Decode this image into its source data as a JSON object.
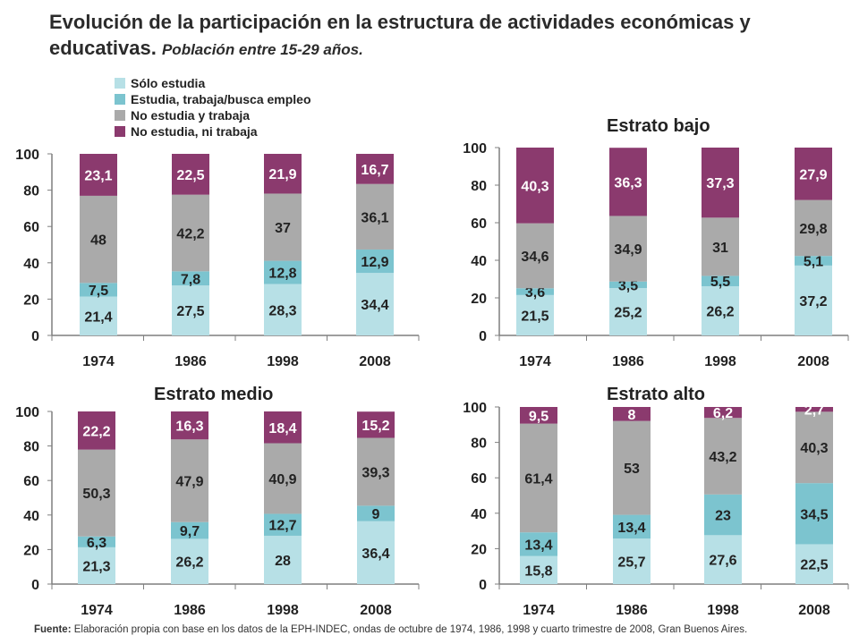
{
  "title": {
    "main": "Evolución de la participación en la estructura de actividades económicas y educativas.",
    "sub": "Población entre 15-29 años."
  },
  "colors": {
    "solo_estudia": "#b7e0e6",
    "estudia_trabaja": "#7cc4cf",
    "no_estudia_trabaja": "#aaaaaa",
    "no_estudia_ni_trabaja": "#8b3a6e"
  },
  "legend": [
    {
      "key": "solo_estudia",
      "label": "Sólo estudia"
    },
    {
      "key": "estudia_trabaja",
      "label": "Estudia, trabaja/busca empleo"
    },
    {
      "key": "no_estudia_trabaja",
      "label": "No estudia y trabaja"
    },
    {
      "key": "no_estudia_ni_trabaja",
      "label": "No estudia, ni trabaja"
    }
  ],
  "chart_data": [
    {
      "type": "bar",
      "stacked": true,
      "title": "",
      "categories": [
        "1974",
        "1986",
        "1998",
        "2008"
      ],
      "ylim": [
        0,
        100
      ],
      "yticks": [
        "0",
        "20",
        "40",
        "60",
        "80",
        "100"
      ],
      "series": [
        {
          "name": "Sólo estudia",
          "key": "solo_estudia",
          "values": [
            21.4,
            27.5,
            28.3,
            34.4
          ],
          "labels": [
            "21,4",
            "27,5",
            "28,3",
            "34,4"
          ]
        },
        {
          "name": "Estudia, trabaja/busca empleo",
          "key": "estudia_trabaja",
          "values": [
            7.5,
            7.8,
            12.8,
            12.9
          ],
          "labels": [
            "7,5",
            "7,8",
            "12,8",
            "12,9"
          ]
        },
        {
          "name": "No estudia y trabaja",
          "key": "no_estudia_trabaja",
          "values": [
            48,
            42.2,
            37,
            36.1
          ],
          "labels": [
            "48",
            "42,2",
            "37",
            "36,1"
          ]
        },
        {
          "name": "No estudia, ni trabaja",
          "key": "no_estudia_ni_trabaja",
          "values": [
            23.1,
            22.5,
            21.9,
            16.7
          ],
          "labels": [
            "23,1",
            "22,5",
            "21,9",
            "16,7"
          ]
        }
      ]
    },
    {
      "type": "bar",
      "stacked": true,
      "title": "Estrato bajo",
      "categories": [
        "1974",
        "1986",
        "1998",
        "2008"
      ],
      "ylim": [
        0,
        100
      ],
      "yticks": [
        "0",
        "20",
        "40",
        "60",
        "80",
        "100"
      ],
      "series": [
        {
          "name": "Sólo estudia",
          "key": "solo_estudia",
          "values": [
            21.5,
            25.2,
            26.2,
            37.2
          ],
          "labels": [
            "21,5",
            "25,2",
            "26,2",
            "37,2"
          ]
        },
        {
          "name": "Estudia, trabaja/busca empleo",
          "key": "estudia_trabaja",
          "values": [
            3.6,
            3.5,
            5.5,
            5.1
          ],
          "labels": [
            "3,6",
            "3,5",
            "5,5",
            "5,1"
          ]
        },
        {
          "name": "No estudia y trabaja",
          "key": "no_estudia_trabaja",
          "values": [
            34.6,
            34.9,
            31,
            29.8
          ],
          "labels": [
            "34,6",
            "34,9",
            "31",
            "29,8"
          ]
        },
        {
          "name": "No estudia, ni trabaja",
          "key": "no_estudia_ni_trabaja",
          "values": [
            40.3,
            36.3,
            37.3,
            27.9
          ],
          "labels": [
            "40,3",
            "36,3",
            "37,3",
            "27,9"
          ]
        }
      ]
    },
    {
      "type": "bar",
      "stacked": true,
      "title": "Estrato medio",
      "categories": [
        "1974",
        "1986",
        "1998",
        "2008"
      ],
      "ylim": [
        0,
        100
      ],
      "yticks": [
        "0",
        "20",
        "40",
        "60",
        "80",
        "100"
      ],
      "series": [
        {
          "name": "Sólo estudia",
          "key": "solo_estudia",
          "values": [
            21.3,
            26.2,
            28,
            36.4
          ],
          "labels": [
            "21,3",
            "26,2",
            "28",
            "36,4"
          ]
        },
        {
          "name": "Estudia, trabaja/busca empleo",
          "key": "estudia_trabaja",
          "values": [
            6.3,
            9.7,
            12.7,
            9
          ],
          "labels": [
            "6,3",
            "9,7",
            "12,7",
            "9"
          ]
        },
        {
          "name": "No estudia y trabaja",
          "key": "no_estudia_trabaja",
          "values": [
            50.3,
            47.9,
            40.9,
            39.3
          ],
          "labels": [
            "50,3",
            "47,9",
            "40,9",
            "39,3"
          ]
        },
        {
          "name": "No estudia, ni trabaja",
          "key": "no_estudia_ni_trabaja",
          "values": [
            22.2,
            16.3,
            18.4,
            15.2
          ],
          "labels": [
            "22,2",
            "16,3",
            "18,4",
            "15,2"
          ]
        }
      ]
    },
    {
      "type": "bar",
      "stacked": true,
      "title": "Estrato alto",
      "categories": [
        "1974",
        "1986",
        "1998",
        "2008"
      ],
      "ylim": [
        0,
        100
      ],
      "yticks": [
        "0",
        "20",
        "40",
        "60",
        "80",
        "100"
      ],
      "series": [
        {
          "name": "Sólo estudia",
          "key": "solo_estudia",
          "values": [
            15.8,
            25.7,
            27.6,
            22.5
          ],
          "labels": [
            "15,8",
            "25,7",
            "27,6",
            "22,5"
          ]
        },
        {
          "name": "Estudia, trabaja/busca empleo",
          "key": "estudia_trabaja",
          "values": [
            13.4,
            13.4,
            23,
            34.5
          ],
          "labels": [
            "13,4",
            "13,4",
            "23",
            "34,5"
          ]
        },
        {
          "name": "No estudia y trabaja",
          "key": "no_estudia_trabaja",
          "values": [
            61.4,
            53,
            43.2,
            40.3
          ],
          "labels": [
            "61,4",
            "53",
            "43,2",
            "40,3"
          ]
        },
        {
          "name": "No estudia, ni trabaja",
          "key": "no_estudia_ni_trabaja",
          "values": [
            9.5,
            8,
            6.2,
            2.7
          ],
          "labels": [
            "9,5",
            "8",
            "6,2",
            "2,7"
          ]
        }
      ]
    }
  ],
  "source": {
    "label": "Fuente:",
    "text": "Elaboración propia con base en los datos de la EPH-INDEC, ondas de octubre de 1974, 1986, 1998 y cuarto trimestre de 2008, Gran Buenos Aires."
  }
}
